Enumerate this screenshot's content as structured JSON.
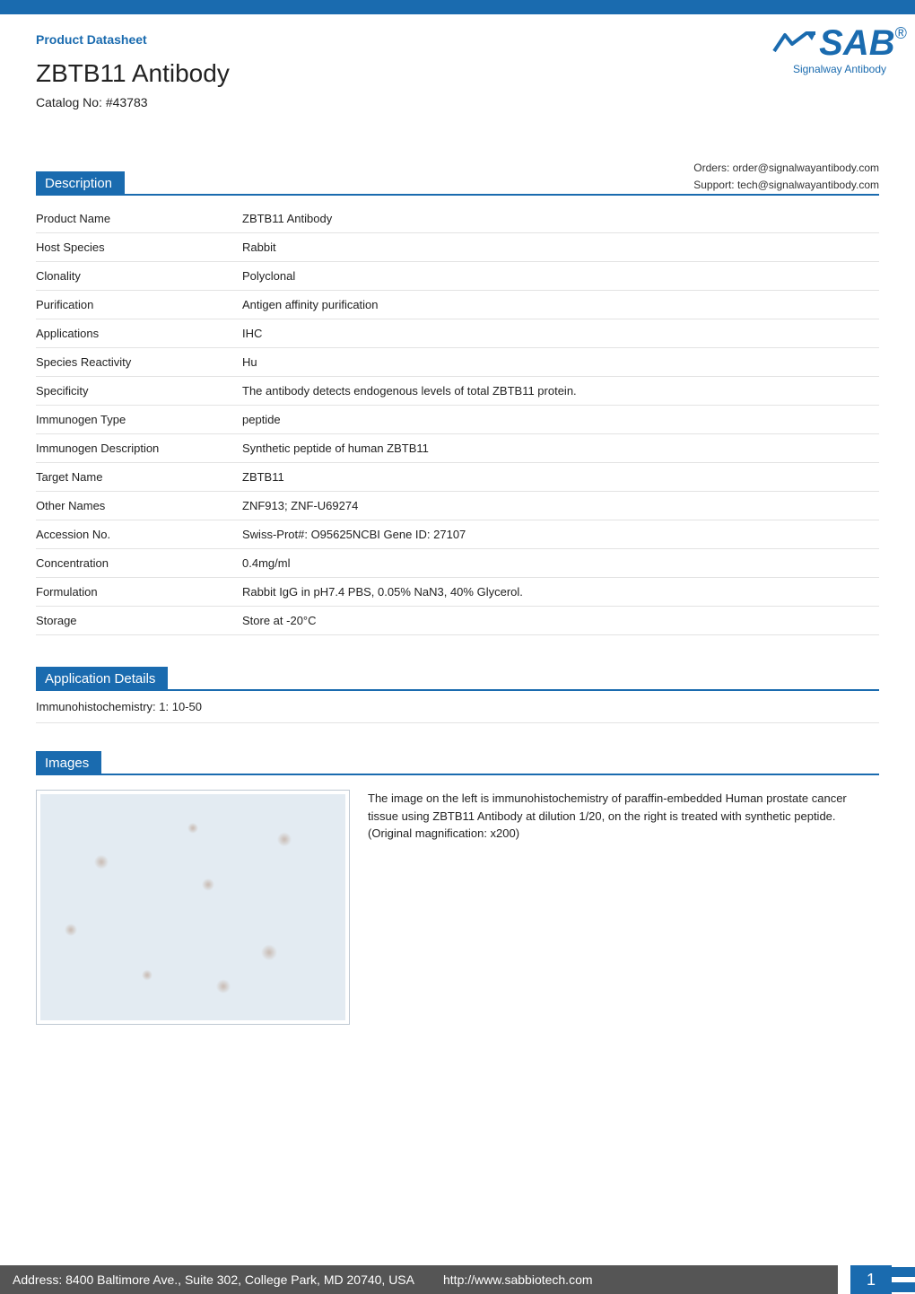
{
  "colors": {
    "accent": "#1a6baf",
    "text": "#222222",
    "footer_bg": "#555555",
    "border": "#e3e3e3",
    "image_border": "#bfc8d2",
    "image_bg": "#e3ebf2"
  },
  "header": {
    "datasheet_label": "Product Datasheet",
    "product_title": "ZBTB11 Antibody",
    "catalog_label": "Catalog No: #43783"
  },
  "logo": {
    "mark": "SAB",
    "sub": "Signalway Antibody"
  },
  "contact": {
    "orders": "Orders: order@signalwayantibody.com",
    "support": "Support: tech@signalwayantibody.com"
  },
  "sections": {
    "description": {
      "title": "Description",
      "rows": [
        {
          "label": "Product Name",
          "value": "ZBTB11 Antibody"
        },
        {
          "label": "Host Species",
          "value": "Rabbit"
        },
        {
          "label": "Clonality",
          "value": "Polyclonal"
        },
        {
          "label": "Purification",
          "value": "Antigen affinity purification"
        },
        {
          "label": "Applications",
          "value": "IHC"
        },
        {
          "label": "Species Reactivity",
          "value": "Hu"
        },
        {
          "label": "Specificity",
          "value": "The antibody detects endogenous levels of total ZBTB11 protein."
        },
        {
          "label": "Immunogen Type",
          "value": "peptide"
        },
        {
          "label": "Immunogen Description",
          "value": "Synthetic peptide of human ZBTB11"
        },
        {
          "label": "Target Name",
          "value": "ZBTB11"
        },
        {
          "label": "Other Names",
          "value": "ZNF913; ZNF-U69274"
        },
        {
          "label": "Accession No.",
          "value": "Swiss-Prot#: O95625NCBI Gene ID: 27107"
        },
        {
          "label": "Concentration",
          "value": "0.4mg/ml"
        },
        {
          "label": "Formulation",
          "value": "Rabbit IgG in pH7.4 PBS, 0.05% NaN3, 40% Glycerol."
        },
        {
          "label": "Storage",
          "value": "Store at -20°C"
        }
      ]
    },
    "application_details": {
      "title": "Application Details",
      "text": "Immunohistochemistry: 1: 10-50"
    },
    "images": {
      "title": "Images",
      "caption": "The image on the left is immunohistochemistry of paraffin-embedded Human prostate cancer tissue using ZBTB11 Antibody at dilution 1/20, on the right is treated with synthetic peptide. (Original magnification: x200)"
    }
  },
  "footer": {
    "address": "Address: 8400 Baltimore Ave., Suite 302, College Park, MD 20740, USA",
    "url": "http://www.sabbiotech.com",
    "page": "1"
  }
}
